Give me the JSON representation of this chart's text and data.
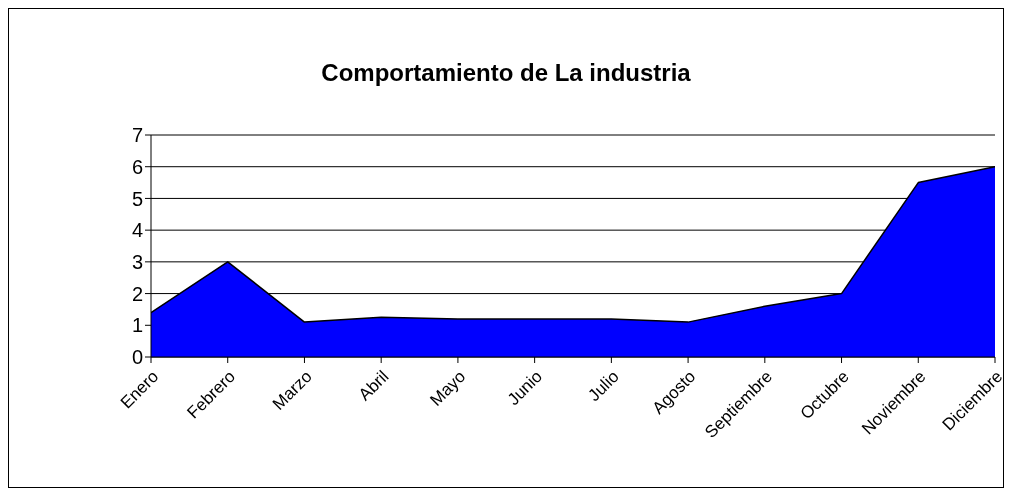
{
  "chart_data": {
    "type": "area",
    "title": "Comportamiento de La industria",
    "categories": [
      "Enero",
      "Febrero",
      "Marzo",
      "Abril",
      "Mayo",
      "Junio",
      "Julio",
      "Agosto",
      "Septiembre",
      "Octubre",
      "Noviembre",
      "Diciembre"
    ],
    "values": [
      1.4,
      3,
      1.1,
      1.25,
      1.2,
      1.2,
      1.2,
      1.1,
      1.6,
      2,
      5.5,
      6
    ],
    "color": "#0000ff",
    "ylim": [
      0,
      7
    ],
    "yticks": [
      0,
      1,
      2,
      3,
      4,
      5,
      6,
      7
    ],
    "grid": "y"
  }
}
